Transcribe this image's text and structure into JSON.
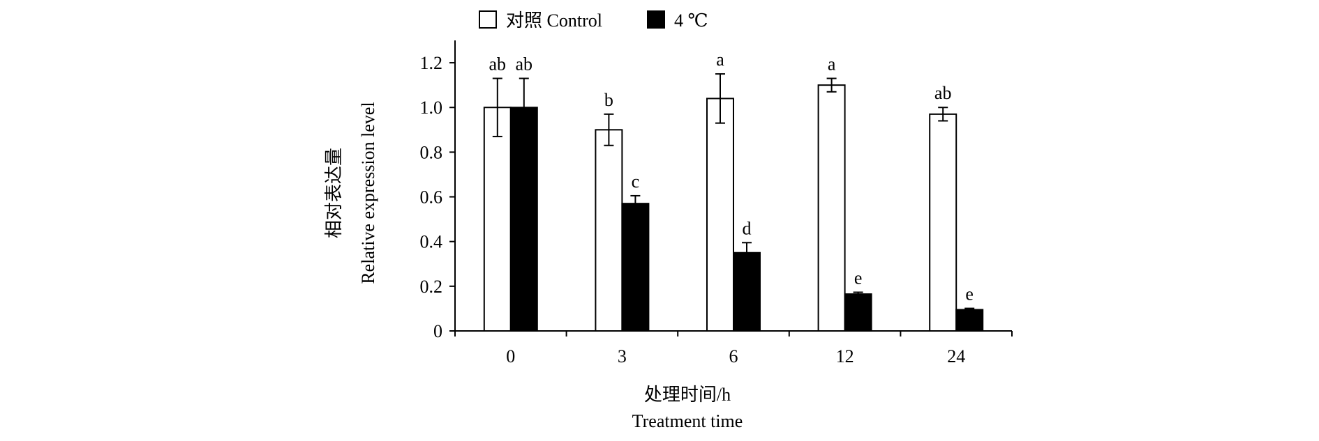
{
  "chart_data": {
    "type": "bar",
    "categories": [
      "0",
      "3",
      "6",
      "12",
      "24"
    ],
    "series": [
      {
        "name": "对照 Control",
        "values": [
          1.0,
          0.9,
          1.04,
          1.1,
          0.97
        ],
        "errors": [
          0.13,
          0.07,
          0.11,
          0.03,
          0.03
        ],
        "labels": [
          "ab",
          "b",
          "a",
          "a",
          "ab"
        ],
        "fill": "#ffffff"
      },
      {
        "name": "4 ℃",
        "values": [
          1.0,
          0.57,
          0.35,
          0.165,
          0.095
        ],
        "errors": [
          0.13,
          0.035,
          0.045,
          0.008,
          0.006
        ],
        "labels": [
          "ab",
          "c",
          "d",
          "e",
          "e"
        ],
        "fill": "#000000"
      }
    ],
    "ylim": [
      0,
      1.3
    ],
    "yticks": [
      "0",
      "0.2",
      "0.4",
      "0.6",
      "0.8",
      "1.0",
      "1.2"
    ],
    "ylabel_cn": "相对表达量",
    "ylabel_en": "Relative expression level",
    "xlabel_cn": "处理时间/h",
    "xlabel_en": "Treatment time",
    "legend_position": "top",
    "grid": false
  }
}
